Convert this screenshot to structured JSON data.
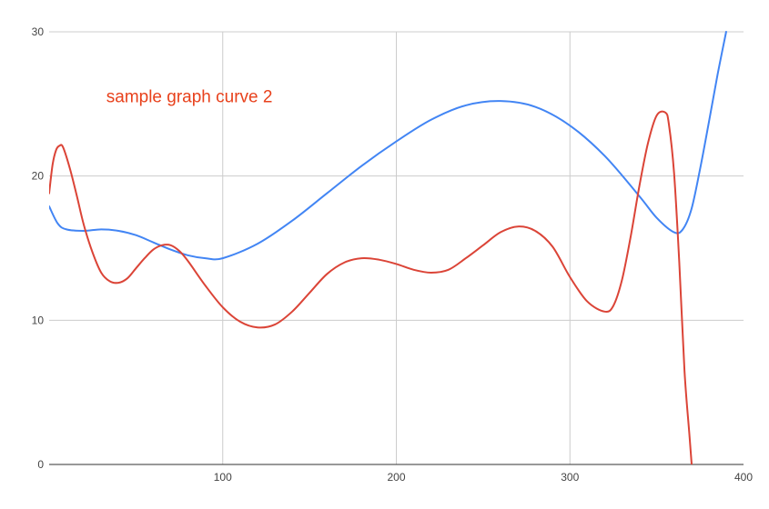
{
  "chart_data": {
    "type": "line",
    "title": "",
    "xlabel": "",
    "ylabel": "",
    "xlim": [
      0,
      400
    ],
    "ylim": [
      0,
      30
    ],
    "x_ticks": [
      100,
      200,
      300,
      400
    ],
    "y_ticks": [
      0,
      10,
      20,
      30
    ],
    "grid": true,
    "legend": "none",
    "annotations": [
      {
        "text": "sample graph curve 2",
        "x": 35,
        "y": 25.5,
        "color": "#e8411c"
      }
    ],
    "series": [
      {
        "color": "#4285f4",
        "x": [
          0,
          5,
          10,
          20,
          30,
          40,
          50,
          60,
          70,
          80,
          90,
          100,
          120,
          140,
          160,
          180,
          200,
          220,
          240,
          260,
          280,
          300,
          320,
          340,
          350,
          360,
          365,
          370,
          375,
          380,
          385,
          390
        ],
        "y": [
          17.9,
          16.7,
          16.3,
          16.2,
          16.3,
          16.2,
          15.9,
          15.4,
          14.9,
          14.5,
          14.3,
          14.3,
          15.3,
          16.9,
          18.8,
          20.7,
          22.4,
          23.9,
          24.9,
          25.2,
          24.8,
          23.5,
          21.4,
          18.6,
          17.1,
          16.1,
          16.3,
          17.7,
          20.5,
          23.7,
          27.0,
          30.0
        ]
      },
      {
        "color": "#db4437",
        "x": [
          0,
          2,
          4,
          6,
          8,
          12,
          16,
          20,
          25,
          30,
          35,
          40,
          45,
          50,
          55,
          60,
          65,
          70,
          75,
          80,
          90,
          100,
          110,
          120,
          130,
          140,
          150,
          160,
          170,
          180,
          190,
          200,
          210,
          220,
          230,
          240,
          250,
          260,
          270,
          280,
          290,
          300,
          310,
          320,
          325,
          330,
          335,
          340,
          345,
          350,
          355,
          357,
          360,
          363,
          366,
          369,
          372
        ],
        "y": [
          18.8,
          20.8,
          21.8,
          22.1,
          22.0,
          20.5,
          18.6,
          16.6,
          14.7,
          13.3,
          12.7,
          12.6,
          12.9,
          13.6,
          14.3,
          14.9,
          15.2,
          15.2,
          14.8,
          14.1,
          12.4,
          10.9,
          9.9,
          9.5,
          9.7,
          10.6,
          11.9,
          13.2,
          14.0,
          14.3,
          14.2,
          13.9,
          13.5,
          13.3,
          13.5,
          14.3,
          15.2,
          16.1,
          16.5,
          16.2,
          15.1,
          13.0,
          11.3,
          10.6,
          11.0,
          12.8,
          15.8,
          19.3,
          22.3,
          24.2,
          24.4,
          23.6,
          20.2,
          14.0,
          6.5,
          1.8,
          -3.0
        ]
      }
    ]
  }
}
